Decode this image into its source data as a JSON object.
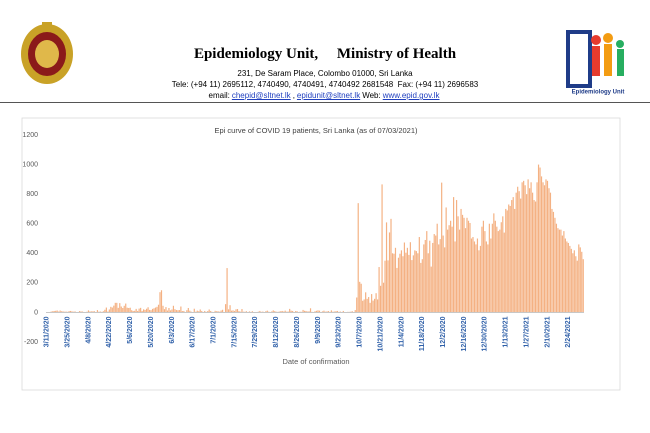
{
  "header": {
    "title": "Epidemiology Unit,     Ministry of Health",
    "address": "231, De Saram Place, Colombo 01000, Sri Lanka",
    "phone": "Tele: (+94 11) 2695112, 4740490, 4740491, 4740492 2681548  Fax: (+94 11) 2696583",
    "contact": [
      {
        "text": "email:",
        "link": false
      },
      {
        "text": "chepid@sltnet.lk",
        "link": true
      },
      {
        "text": ",",
        "link": false
      },
      {
        "text": "epidunit@sltnet.lk",
        "link": true
      },
      {
        "text": "Web:",
        "link": false
      },
      {
        "text": "www.epid.gov.lk",
        "link": true
      }
    ],
    "logo_text": "Epidemiology Unit"
  },
  "chart_data": {
    "type": "bar",
    "title": "Epi curve of COVID 19 patients, Sri Lanka  (as of 07/03/2021)",
    "x_label": "Date of confirmation",
    "color": "#f4b183",
    "ylim": [
      -200,
      1200
    ],
    "yticks": [
      -200,
      0,
      200,
      400,
      600,
      800,
      1000,
      1200
    ],
    "grid": false,
    "categories": [
      "3/11/2020",
      null,
      null,
      null,
      null,
      null,
      null,
      null,
      null,
      null,
      null,
      null,
      null,
      null,
      "3/25/2020",
      null,
      null,
      null,
      null,
      null,
      null,
      null,
      null,
      null,
      null,
      null,
      null,
      null,
      "4/8/2020",
      null,
      null,
      null,
      null,
      null,
      null,
      null,
      null,
      null,
      null,
      null,
      null,
      null,
      "4/22/2020",
      null,
      null,
      null,
      null,
      null,
      null,
      null,
      null,
      null,
      null,
      null,
      null,
      null,
      "5/6/2020",
      null,
      null,
      null,
      null,
      null,
      null,
      null,
      null,
      null,
      null,
      null,
      null,
      null,
      "5/20/2020",
      null,
      null,
      null,
      null,
      null,
      null,
      null,
      null,
      null,
      null,
      null,
      null,
      null,
      "6/3/2020",
      null,
      null,
      null,
      null,
      null,
      null,
      null,
      null,
      null,
      null,
      null,
      null,
      null,
      "6/17/2020",
      null,
      null,
      null,
      null,
      null,
      null,
      null,
      null,
      null,
      null,
      null,
      null,
      null,
      "7/1/2020",
      null,
      null,
      null,
      null,
      null,
      null,
      null,
      null,
      null,
      null,
      null,
      null,
      null,
      "7/15/2020",
      null,
      null,
      null,
      null,
      null,
      null,
      null,
      null,
      null,
      null,
      null,
      null,
      null,
      "7/29/2020",
      null,
      null,
      null,
      null,
      null,
      null,
      null,
      null,
      null,
      null,
      null,
      null,
      null,
      "8/12/2020",
      null,
      null,
      null,
      null,
      null,
      null,
      null,
      null,
      null,
      null,
      null,
      null,
      null,
      "8/26/2020",
      null,
      null,
      null,
      null,
      null,
      null,
      null,
      null,
      null,
      null,
      null,
      null,
      null,
      "9/9/2020",
      null,
      null,
      null,
      null,
      null,
      null,
      null,
      null,
      null,
      null,
      null,
      null,
      null,
      "9/23/2020",
      null,
      null,
      null,
      null,
      null,
      null,
      null,
      null,
      null,
      null,
      null,
      null,
      null,
      "10/7/2020",
      null,
      null,
      null,
      null,
      null,
      null,
      null,
      null,
      null,
      null,
      null,
      null,
      null,
      "10/21/2020",
      null,
      null,
      null,
      null,
      null,
      null,
      null,
      null,
      null,
      null,
      null,
      null,
      null,
      "11/4/2020",
      null,
      null,
      null,
      null,
      null,
      null,
      null,
      null,
      null,
      null,
      null,
      null,
      null,
      "11/18/2020",
      null,
      null,
      null,
      null,
      null,
      null,
      null,
      null,
      null,
      null,
      null,
      null,
      null,
      "12/2/2020",
      null,
      null,
      null,
      null,
      null,
      null,
      null,
      null,
      null,
      null,
      null,
      null,
      null,
      "12/16/2020",
      null,
      null,
      null,
      null,
      null,
      null,
      null,
      null,
      null,
      null,
      null,
      null,
      null,
      "12/30/2020",
      null,
      null,
      null,
      null,
      null,
      null,
      null,
      null,
      null,
      null,
      null,
      null,
      null,
      "1/13/2021",
      null,
      null,
      null,
      null,
      null,
      null,
      null,
      null,
      null,
      null,
      null,
      null,
      null,
      "1/27/2021",
      null,
      null,
      null,
      null,
      null,
      null,
      null,
      null,
      null,
      null,
      null,
      null,
      null,
      "2/10/2021",
      null,
      null,
      null,
      null,
      null,
      null,
      null,
      null,
      null,
      null,
      null,
      null,
      null,
      "2/24/2021",
      null,
      null,
      null,
      null,
      null,
      null,
      null,
      null,
      null,
      null
    ],
    "values": [
      1,
      1,
      2,
      6,
      8,
      10,
      11,
      13,
      6,
      13,
      8,
      7,
      5,
      6,
      4,
      9,
      10,
      7,
      5,
      7,
      0,
      3,
      9,
      7,
      6,
      3,
      0,
      5,
      14,
      7,
      7,
      8,
      8,
      2,
      16,
      5,
      6,
      4,
      8,
      18,
      33,
      6,
      20,
      38,
      33,
      46,
      65,
      65,
      31,
      63,
      40,
      30,
      45,
      60,
      32,
      30,
      32,
      15,
      10,
      11,
      24,
      10,
      26,
      31,
      10,
      21,
      17,
      25,
      35,
      17,
      15,
      24,
      28,
      33,
      38,
      52,
      137,
      150,
      45,
      22,
      36,
      13,
      30,
      14,
      20,
      45,
      22,
      16,
      15,
      16,
      40,
      9,
      10,
      2,
      15,
      30,
      12,
      5,
      2,
      25,
      5,
      12,
      8,
      20,
      10,
      3,
      10,
      4,
      9,
      20,
      10,
      4,
      3,
      11,
      8,
      8,
      5,
      13,
      18,
      0,
      56,
      300,
      21,
      49,
      12,
      14,
      10,
      21,
      23,
      9,
      5,
      23,
      5,
      5,
      8,
      2,
      7,
      4,
      8,
      3,
      2,
      3,
      5,
      10,
      4,
      6,
      2,
      8,
      12,
      5,
      3,
      7,
      14,
      9,
      5,
      4,
      6,
      8,
      10,
      6,
      12,
      5,
      6,
      24,
      12,
      10,
      3,
      9,
      8,
      2,
      5,
      4,
      17,
      11,
      10,
      6,
      8,
      28,
      4,
      2,
      8,
      11,
      14,
      12,
      3,
      7,
      12,
      5,
      7,
      9,
      4,
      14,
      5,
      6,
      8,
      10,
      4,
      6,
      3,
      10,
      2,
      2,
      4,
      4,
      5,
      8,
      2,
      16,
      101,
      739,
      207,
      194,
      79,
      88,
      136,
      92,
      104,
      65,
      124,
      80,
      92,
      130,
      88,
      307,
      180,
      866,
      201,
      350,
      609,
      352,
      541,
      633,
      400,
      397,
      437,
      301,
      370,
      397,
      420,
      380,
      473,
      404,
      437,
      389,
      475,
      354,
      386,
      420,
      415,
      400,
      510,
      335,
      360,
      460,
      490,
      550,
      400,
      485,
      310,
      470,
      530,
      520,
      600,
      460,
      496,
      878,
      520,
      440,
      710,
      560,
      590,
      620,
      580,
      780,
      480,
      760,
      650,
      560,
      700,
      660,
      640,
      570,
      640,
      620,
      605,
      500,
      510,
      480,
      460,
      500,
      420,
      450,
      580,
      620,
      550,
      480,
      460,
      600,
      500,
      600,
      670,
      620,
      580,
      550,
      560,
      610,
      650,
      540,
      700,
      690,
      730,
      720,
      760,
      780,
      700,
      810,
      850,
      820,
      770,
      880,
      890,
      860,
      800,
      900,
      840,
      880,
      810,
      760,
      750,
      880,
      1000,
      980,
      920,
      880,
      860,
      900,
      890,
      840,
      810,
      700,
      680,
      640,
      600,
      570,
      560,
      560,
      520,
      550,
      500,
      480,
      470,
      450,
      430,
      400,
      420,
      380,
      350,
      460,
      440,
      410,
      360
    ]
  }
}
